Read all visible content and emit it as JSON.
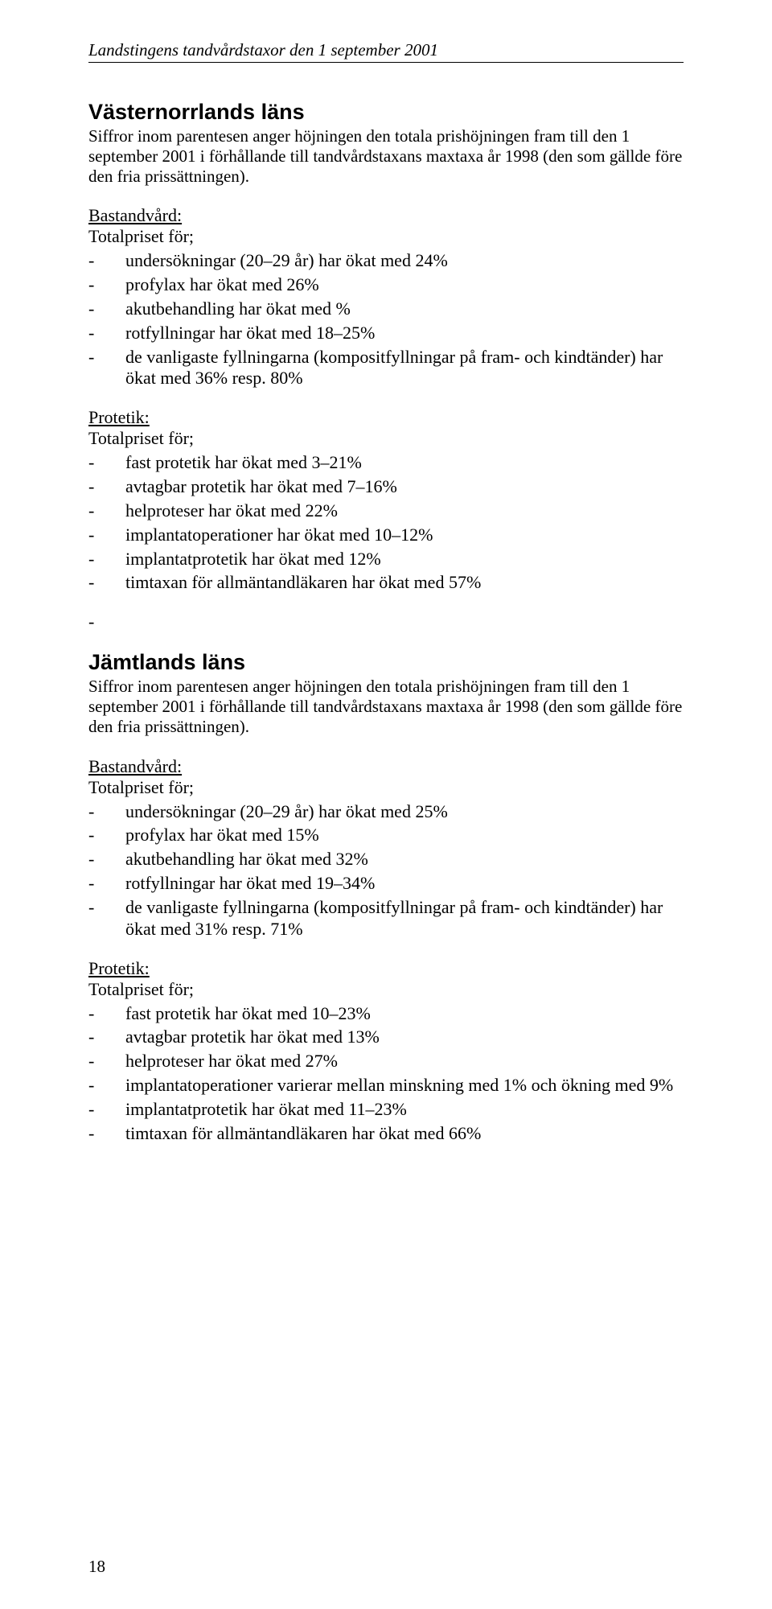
{
  "document": {
    "header": "Landstingens tandvårdstaxor den 1 september 2001",
    "page_number": "18",
    "text_color": "#000000",
    "background_color": "#ffffff",
    "body_font": "Times New Roman",
    "heading_font": "Arial",
    "body_fontsize_pt": 16,
    "heading_fontsize_pt": 20
  },
  "sections": [
    {
      "title": "Västernorrlands läns",
      "intro": "Siffror inom parentesen anger höjningen den totala prishöjningen fram till den 1 september 2001 i förhållande till tandvårdstaxans maxtaxa år 1998 (den som gällde före den fria prissättningen).",
      "groups": [
        {
          "subhead": "Bastandvård:",
          "totalline": "Totalpriset för;",
          "items": [
            "undersökningar (20–29 år) har ökat med 24%",
            "profylax har ökat med 26%",
            "akutbehandling har ökat med %",
            "rotfyllningar har ökat med 18–25%",
            "de vanligaste fyllningarna (kompositfyllningar på fram- och kindtänder) har ökat med 36% resp. 80%"
          ]
        },
        {
          "subhead": "Protetik:",
          "totalline": "Totalpriset för;",
          "items": [
            "fast protetik har ökat med 3–21%",
            "avtagbar protetik har ökat med 7–16%",
            "helproteser har ökat med 22%",
            "implantatoperationer har ökat med 10–12%",
            "implantatprotetik har ökat med 12%",
            "timtaxan för allmäntandläkaren har ökat med 57%"
          ],
          "trailing_empty_dash": true
        }
      ]
    },
    {
      "title": "Jämtlands läns",
      "intro": "Siffror inom parentesen anger höjningen den totala prishöjningen fram till den 1 september 2001 i förhållande till tandvårdstaxans maxtaxa år 1998 (den som gällde före den fria prissättningen).",
      "groups": [
        {
          "subhead": "Bastandvård:",
          "totalline": "Totalpriset för;",
          "items": [
            "undersökningar (20–29 år) har ökat med 25%",
            "profylax har ökat med 15%",
            "akutbehandling har ökat med 32%",
            "rotfyllningar har ökat med 19–34%",
            "de vanligaste fyllningarna (kompositfyllningar på fram- och kindtänder) har ökat med 31% resp. 71%"
          ]
        },
        {
          "subhead": "Protetik:",
          "totalline": "Totalpriset för;",
          "items": [
            "fast protetik har ökat med 10–23%",
            "avtagbar protetik har ökat med 13%",
            "helproteser har ökat med 27%",
            "implantatoperationer varierar mellan  minskning med 1% och ökning med 9%",
            "implantatprotetik har ökat med  11–23%",
            "timtaxan för allmäntandläkaren har ökat med 66%"
          ]
        }
      ]
    }
  ]
}
